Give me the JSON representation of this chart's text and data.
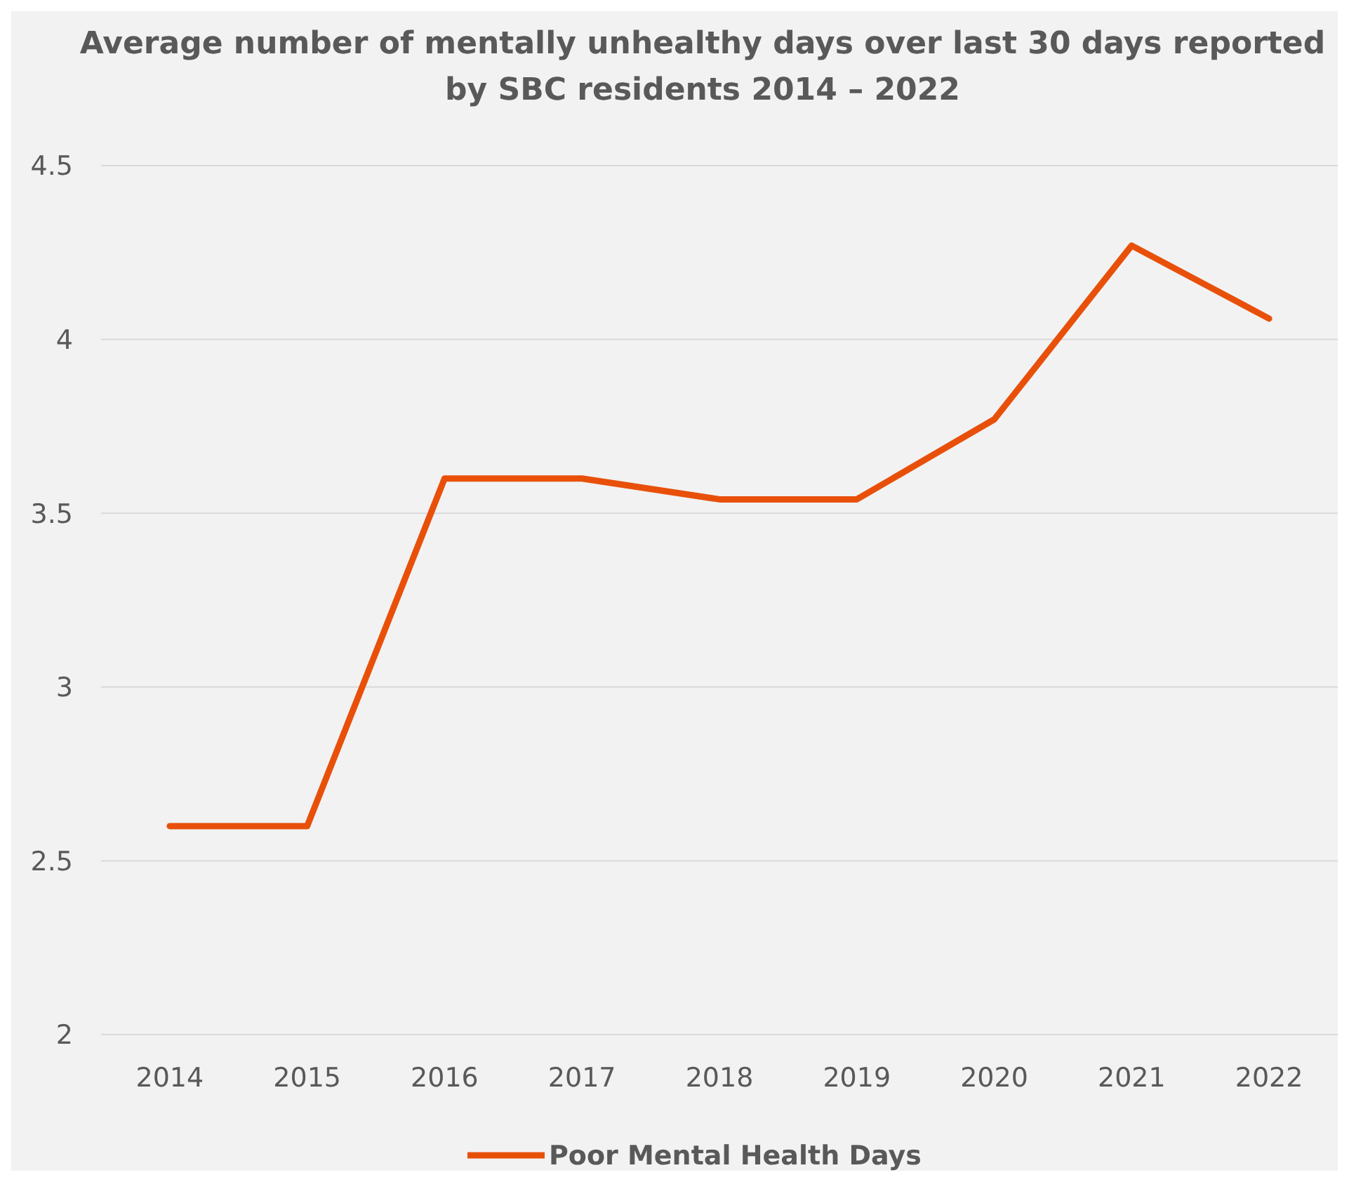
{
  "chart_data": {
    "type": "line",
    "title": "Average number of mentally unhealthy days over last 30 days reported by SBC residents 2014 – 2022",
    "categories": [
      "2014",
      "2015",
      "2016",
      "2017",
      "2018",
      "2019",
      "2020",
      "2021",
      "2022"
    ],
    "series": [
      {
        "name": "Poor Mental Health Days",
        "color": "#e8500a",
        "values": [
          2.6,
          2.6,
          3.6,
          3.6,
          3.54,
          3.54,
          3.77,
          4.27,
          4.06
        ]
      }
    ],
    "ylim": [
      2,
      4.5
    ],
    "yticks": [
      2,
      2.5,
      3,
      3.5,
      4,
      4.5
    ],
    "grid": "y",
    "legend": "bottom",
    "marker": "none",
    "line_style": "solid"
  }
}
